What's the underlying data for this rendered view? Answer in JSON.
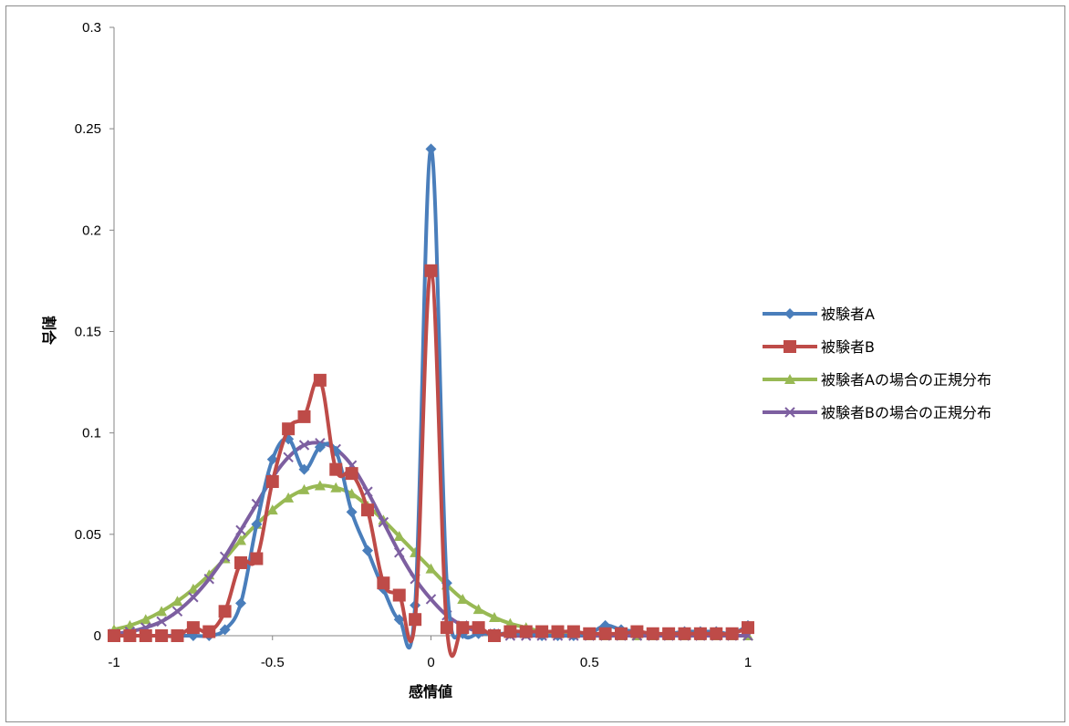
{
  "chart_data": {
    "type": "line",
    "title": "",
    "xlabel": "感情値",
    "ylabel": "割合",
    "xlim": [
      -1,
      1
    ],
    "ylim": [
      0,
      0.3
    ],
    "xticks": [
      -1,
      -0.5,
      0,
      0.5,
      1
    ],
    "xtick_labels": [
      "-1",
      "-0.5",
      "0",
      "0.5",
      "1"
    ],
    "yticks": [
      0,
      0.05,
      0.1,
      0.15,
      0.2,
      0.25,
      0.3
    ],
    "ytick_labels": [
      "0",
      "0.05",
      "0.1",
      "0.15",
      "0.2",
      "0.25",
      "0.3"
    ],
    "grid": false,
    "legend_position": "right",
    "x": [
      -1,
      -0.95,
      -0.9,
      -0.85,
      -0.8,
      -0.75,
      -0.7,
      -0.65,
      -0.6,
      -0.55,
      -0.5,
      -0.45,
      -0.4,
      -0.35,
      -0.3,
      -0.25,
      -0.2,
      -0.15,
      -0.1,
      -0.05,
      0,
      0.05,
      0.1,
      0.15,
      0.2,
      0.25,
      0.3,
      0.35,
      0.4,
      0.45,
      0.5,
      0.55,
      0.6,
      0.65,
      0.7,
      0.75,
      0.8,
      0.85,
      0.9,
      0.95,
      1
    ],
    "series": [
      {
        "name": "被験者A",
        "color": "#4a7ebb",
        "marker": "diamond",
        "values": [
          0,
          0,
          0,
          0,
          0,
          0,
          0,
          0.003,
          0.016,
          0.055,
          0.087,
          0.097,
          0.082,
          0.093,
          0.091,
          0.061,
          0.042,
          0.023,
          0.008,
          0.015,
          0.24,
          0.026,
          0.001,
          0.001,
          0.001,
          0.001,
          0.001,
          0,
          0,
          0,
          0.001,
          0.005,
          0.003,
          0.002,
          0.001,
          0.001,
          0.002,
          0.002,
          0.002,
          0.001,
          0.005
        ]
      },
      {
        "name": "被験者B",
        "color": "#be4b48",
        "marker": "square",
        "values": [
          0,
          0,
          0,
          0,
          0,
          0.004,
          0.002,
          0.012,
          0.036,
          0.038,
          0.076,
          0.102,
          0.108,
          0.126,
          0.082,
          0.08,
          0.062,
          0.026,
          0.02,
          0.008,
          0.18,
          0.004,
          0.004,
          0.004,
          0,
          0.002,
          0.002,
          0.002,
          0.002,
          0.002,
          0.001,
          0.001,
          0.001,
          0.002,
          0.001,
          0.001,
          0.001,
          0.001,
          0.001,
          0.001,
          0.004
        ]
      },
      {
        "name": "被験者Aの場合の正規分布",
        "color": "#98b954",
        "marker": "triangle",
        "values": [
          0.003,
          0.005,
          0.008,
          0.012,
          0.017,
          0.023,
          0.03,
          0.038,
          0.047,
          0.055,
          0.062,
          0.068,
          0.072,
          0.074,
          0.073,
          0.07,
          0.064,
          0.057,
          0.049,
          0.041,
          0.033,
          0.025,
          0.018,
          0.013,
          0.009,
          0.006,
          0.004,
          0.002,
          0.001,
          0.001,
          0,
          0,
          0,
          0,
          0,
          0,
          0,
          0,
          0,
          0,
          0
        ]
      },
      {
        "name": "被験者Bの場合の正規分布",
        "color": "#7d5fa0",
        "marker": "x",
        "values": [
          0.001,
          0.002,
          0.004,
          0.007,
          0.012,
          0.019,
          0.028,
          0.039,
          0.052,
          0.065,
          0.078,
          0.088,
          0.094,
          0.095,
          0.092,
          0.084,
          0.071,
          0.056,
          0.041,
          0.028,
          0.018,
          0.01,
          0.005,
          0.002,
          0.001,
          0,
          0,
          0,
          0,
          0,
          0,
          0,
          0,
          0,
          0,
          0,
          0,
          0,
          0,
          0,
          0
        ]
      }
    ]
  }
}
